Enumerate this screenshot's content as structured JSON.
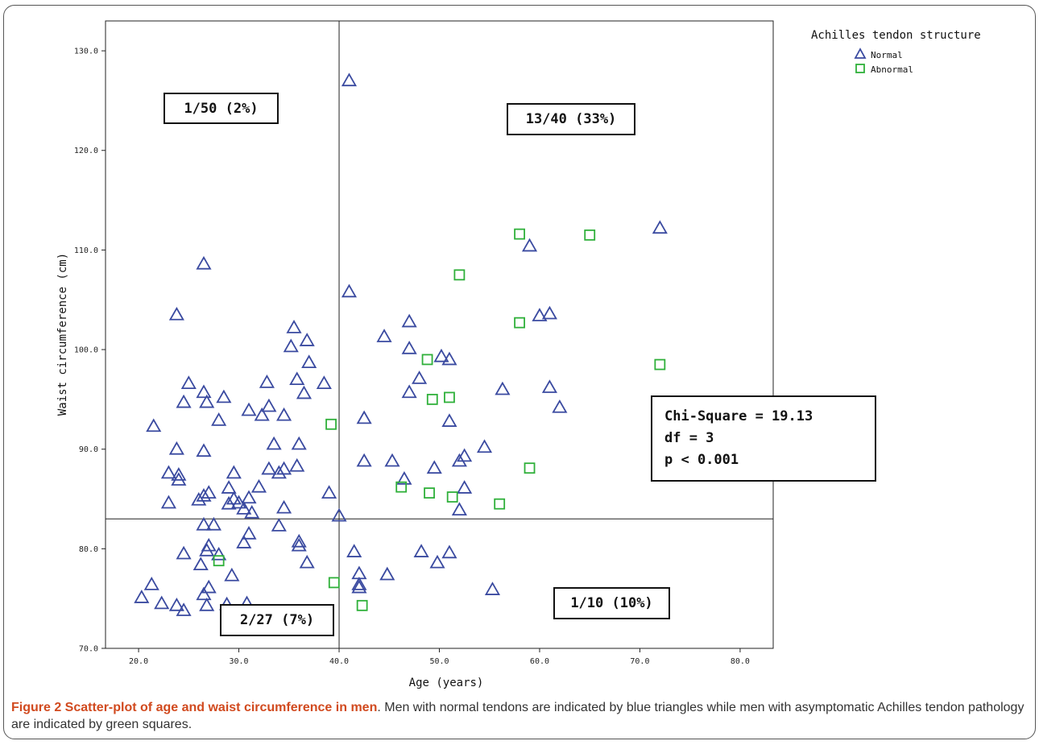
{
  "caption": {
    "title": "Figure 2 Scatter-plot of age and waist circumference in men",
    "text": ". Men with normal tendons are indicated by blue triangles while men with asymptomatic Achilles tendon pathology are indicated by green squares."
  },
  "colors": {
    "normal": "#3a4aa0",
    "abnormal": "#2fb03a",
    "caption_title": "#d14a1f"
  },
  "chart_data": {
    "type": "scatter",
    "title": "",
    "xlabel": "Age (years)",
    "ylabel": "Waist circumference (cm)",
    "xlim": [
      16.7,
      83.3
    ],
    "ylim": [
      70,
      133
    ],
    "xticks": [
      "20.0",
      "30.0",
      "40.0",
      "50.0",
      "60.0",
      "70.0",
      "80.0"
    ],
    "yticks": [
      "70.0",
      "80.0",
      "90.0",
      "100.0",
      "110.0",
      "120.0",
      "130.0"
    ],
    "reference_lines": {
      "x": 40,
      "y": 83
    },
    "legend": {
      "title": "Achilles tendon structure",
      "placement": "top-right outside",
      "items": [
        "Normal",
        "Abnormal"
      ]
    },
    "annotations": {
      "top_left": "1/50 (2%)",
      "top_right": "13/40 (33%)",
      "bottom_left": "2/27 (7%)",
      "bottom_right": "1/10 (10%)",
      "stats": [
        "Chi-Square = 19.13",
        "df = 3",
        "p < 0.001"
      ]
    },
    "series": [
      {
        "name": "Normal",
        "marker": "triangle",
        "points": [
          [
            41,
            127
          ],
          [
            26.5,
            108.6
          ],
          [
            41,
            105.8
          ],
          [
            23.8,
            103.5
          ],
          [
            21.5,
            92.3
          ],
          [
            23,
            87.6
          ],
          [
            23.8,
            90
          ],
          [
            24,
            87.4
          ],
          [
            24,
            86.9
          ],
          [
            23,
            84.6
          ],
          [
            25,
            96.6
          ],
          [
            24.5,
            94.7
          ],
          [
            26.5,
            95.7
          ],
          [
            26.8,
            94.7
          ],
          [
            26.5,
            89.8
          ],
          [
            26.5,
            85.3
          ],
          [
            27,
            85.6
          ],
          [
            26,
            84.9
          ],
          [
            28,
            92.9
          ],
          [
            28.5,
            95.2
          ],
          [
            29.5,
            87.6
          ],
          [
            29,
            86.1
          ],
          [
            29,
            84.5
          ],
          [
            29.5,
            85
          ],
          [
            30,
            84.6
          ],
          [
            30.5,
            84
          ],
          [
            31,
            85.1
          ],
          [
            31.3,
            83.6
          ],
          [
            32,
            86.2
          ],
          [
            31,
            93.9
          ],
          [
            32.3,
            93.4
          ],
          [
            32.8,
            96.7
          ],
          [
            33,
            94.3
          ],
          [
            33,
            88
          ],
          [
            33.5,
            90.5
          ],
          [
            34,
            87.6
          ],
          [
            34.5,
            88
          ],
          [
            34.5,
            93.4
          ],
          [
            34.5,
            84.1
          ],
          [
            35.2,
            100.3
          ],
          [
            35.5,
            102.2
          ],
          [
            35.8,
            97
          ],
          [
            35.8,
            88.3
          ],
          [
            36,
            90.5
          ],
          [
            36.5,
            95.6
          ],
          [
            36.8,
            100.9
          ],
          [
            37,
            98.7
          ],
          [
            38.5,
            96.6
          ],
          [
            39,
            85.6
          ],
          [
            44.5,
            101.3
          ],
          [
            47,
            102.8
          ],
          [
            47,
            100.1
          ],
          [
            48,
            97.1
          ],
          [
            47,
            95.7
          ],
          [
            50.2,
            99.3
          ],
          [
            51,
            99
          ],
          [
            51,
            92.8
          ],
          [
            42.5,
            93.1
          ],
          [
            42.5,
            88.8
          ],
          [
            45.3,
            88.8
          ],
          [
            46.5,
            87
          ],
          [
            49.5,
            88.1
          ],
          [
            52,
            88.8
          ],
          [
            52.5,
            89.3
          ],
          [
            54.5,
            90.2
          ],
          [
            52.5,
            86.1
          ],
          [
            52,
            83.9
          ],
          [
            56.3,
            96
          ],
          [
            60,
            103.4
          ],
          [
            61,
            103.6
          ],
          [
            59,
            110.4
          ],
          [
            61,
            96.2
          ],
          [
            62,
            94.2
          ],
          [
            72,
            112.2
          ],
          [
            26.5,
            82.4
          ],
          [
            27.5,
            82.4
          ],
          [
            26.8,
            79.8
          ],
          [
            27,
            80.3
          ],
          [
            24.5,
            79.5
          ],
          [
            28,
            79.4
          ],
          [
            26.2,
            78.4
          ],
          [
            30.5,
            80.6
          ],
          [
            31,
            81.5
          ],
          [
            34,
            82.3
          ],
          [
            36,
            80.7
          ],
          [
            36,
            80.3
          ],
          [
            36.8,
            78.6
          ],
          [
            29.3,
            77.3
          ],
          [
            27,
            76.1
          ],
          [
            26.5,
            75.4
          ],
          [
            26.8,
            74.3
          ],
          [
            21.3,
            76.4
          ],
          [
            20.3,
            75.1
          ],
          [
            22.3,
            74.5
          ],
          [
            23.8,
            74.3
          ],
          [
            24.5,
            73.8
          ],
          [
            28.8,
            74.4
          ],
          [
            30.8,
            74.5
          ],
          [
            40,
            83.3
          ],
          [
            41.5,
            79.7
          ],
          [
            42,
            77.5
          ],
          [
            42,
            76.4
          ],
          [
            42,
            76.1
          ],
          [
            44.8,
            77.4
          ],
          [
            48.2,
            79.7
          ],
          [
            49.8,
            78.6
          ],
          [
            51,
            79.6
          ],
          [
            55.3,
            75.9
          ]
        ]
      },
      {
        "name": "Abnormal",
        "marker": "square",
        "points": [
          [
            58,
            111.6
          ],
          [
            65,
            111.5
          ],
          [
            52,
            107.5
          ],
          [
            58,
            102.7
          ],
          [
            72,
            98.5
          ],
          [
            48.8,
            99
          ],
          [
            49.3,
            95
          ],
          [
            51,
            95.2
          ],
          [
            39.2,
            92.5
          ],
          [
            59,
            88.1
          ],
          [
            46.2,
            86.2
          ],
          [
            49,
            85.6
          ],
          [
            51.3,
            85.2
          ],
          [
            56,
            84.5
          ],
          [
            28,
            78.8
          ],
          [
            39.5,
            76.6
          ],
          [
            42.3,
            74.3
          ]
        ]
      }
    ]
  }
}
